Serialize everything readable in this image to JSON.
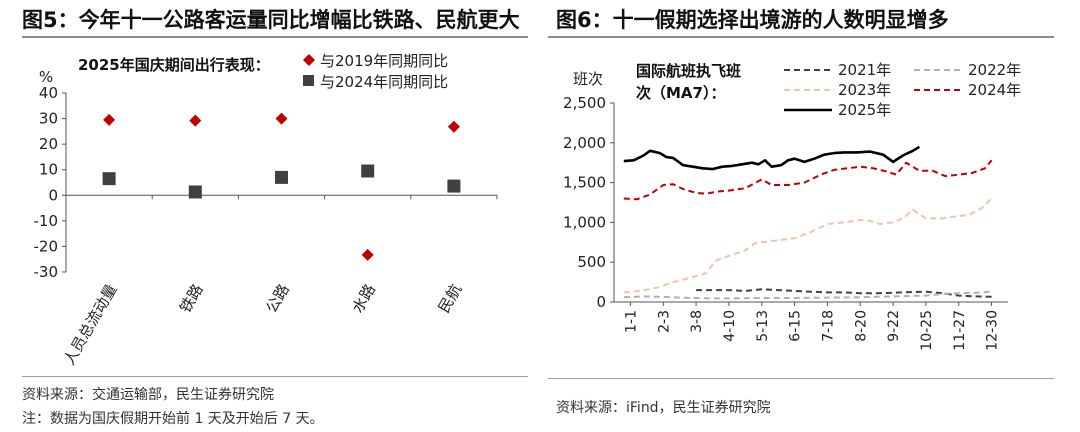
{
  "left": {
    "title": "图5：今年十一公路客运量同比增幅比铁路、民航更大",
    "source": "资料来源：交通运输部，民生证券研究院",
    "note": "注：数据为国庆假期开始前 1 天及开始后 7 天。",
    "chart_data": {
      "type": "scatter",
      "title": "2025年国庆期间出行表现：",
      "ylabel": "%",
      "ylim": [
        -30,
        40
      ],
      "yticks": [
        "40",
        "30",
        "20",
        "10",
        "0",
        "-10",
        "-20",
        "-30"
      ],
      "categories": [
        "人员总流动量",
        "铁路",
        "公路",
        "水路",
        "民航"
      ],
      "series": [
        {
          "name": "与2019年同期同比",
          "marker": "diamond",
          "color": "#c00000",
          "values": [
            29.5,
            29.2,
            30.0,
            -23.3,
            26.8
          ]
        },
        {
          "name": "与2024年同期同比",
          "marker": "square",
          "color": "#404040",
          "values": [
            6.5,
            1.3,
            7.0,
            9.5,
            3.6
          ]
        }
      ]
    }
  },
  "right": {
    "title": "图6：十一假期选择出境游的人数明显增多",
    "source": "资料来源：iFind，民生证券研究院",
    "chart_data": {
      "type": "line",
      "title": "国际航班执飞班次（MA7）：",
      "ylabel": "班次",
      "ylim": [
        0,
        2500
      ],
      "yticks": [
        "2,500",
        "2,000",
        "1,500",
        "1,000",
        "500",
        "0"
      ],
      "x_ticks": [
        "1-1",
        "2-3",
        "3-8",
        "4-10",
        "5-13",
        "6-15",
        "7-18",
        "8-20",
        "9-22",
        "10-25",
        "11-27",
        "12-30"
      ],
      "series": [
        {
          "name": "2021年",
          "color": "#404040",
          "dash": "6,4",
          "points": [
            [
              3.0,
              150
            ],
            [
              4.0,
              150
            ],
            [
              4.5,
              140
            ],
            [
              5.0,
              160
            ],
            [
              5.5,
              150
            ],
            [
              6.0,
              140
            ],
            [
              6.5,
              130
            ],
            [
              7.0,
              120
            ],
            [
              7.5,
              120
            ],
            [
              8.0,
              110
            ],
            [
              8.5,
              110
            ],
            [
              9.0,
              115
            ],
            [
              9.5,
              125
            ],
            [
              10.0,
              130
            ],
            [
              10.5,
              110
            ],
            [
              11.0,
              80
            ],
            [
              11.5,
              70
            ],
            [
              12.0,
              65
            ]
          ]
        },
        {
          "name": "2022年",
          "color": "#b0b0b0",
          "dash": "6,4",
          "points": [
            [
              0.8,
              60
            ],
            [
              1.5,
              70
            ],
            [
              2.0,
              65
            ],
            [
              2.5,
              55
            ],
            [
              3.0,
              50
            ],
            [
              3.5,
              45
            ],
            [
              4.0,
              45
            ],
            [
              5.0,
              50
            ],
            [
              6.0,
              50
            ],
            [
              7.0,
              55
            ],
            [
              8.0,
              60
            ],
            [
              9.0,
              70
            ],
            [
              10.0,
              80
            ],
            [
              10.5,
              100
            ],
            [
              11.0,
              110
            ],
            [
              11.5,
              115
            ],
            [
              12.0,
              130
            ]
          ]
        },
        {
          "name": "2023年",
          "color": "#f4c2a8",
          "dash": "6,4",
          "points": [
            [
              0.8,
              120
            ],
            [
              1.3,
              140
            ],
            [
              1.8,
              180
            ],
            [
              2.3,
              250
            ],
            [
              2.8,
              300
            ],
            [
              3.3,
              360
            ],
            [
              3.6,
              520
            ],
            [
              4.0,
              580
            ],
            [
              4.5,
              650
            ],
            [
              4.8,
              740
            ],
            [
              5.2,
              760
            ],
            [
              5.6,
              780
            ],
            [
              6.0,
              800
            ],
            [
              6.5,
              880
            ],
            [
              7.0,
              980
            ],
            [
              7.5,
              1000
            ],
            [
              8.0,
              1030
            ],
            [
              8.3,
              1020
            ],
            [
              8.6,
              980
            ],
            [
              9.0,
              1000
            ],
            [
              9.3,
              1050
            ],
            [
              9.6,
              1160
            ],
            [
              10.0,
              1050
            ],
            [
              10.5,
              1050
            ],
            [
              11.0,
              1080
            ],
            [
              11.3,
              1090
            ],
            [
              11.7,
              1180
            ],
            [
              12.0,
              1300
            ]
          ]
        },
        {
          "name": "2024年",
          "color": "#c00000",
          "dash": "6,4",
          "points": [
            [
              0.8,
              1300
            ],
            [
              1.2,
              1290
            ],
            [
              1.6,
              1350
            ],
            [
              2.0,
              1470
            ],
            [
              2.3,
              1480
            ],
            [
              2.6,
              1420
            ],
            [
              3.0,
              1370
            ],
            [
              3.3,
              1360
            ],
            [
              3.7,
              1390
            ],
            [
              4.0,
              1400
            ],
            [
              4.5,
              1430
            ],
            [
              5.0,
              1540
            ],
            [
              5.3,
              1470
            ],
            [
              5.8,
              1470
            ],
            [
              6.3,
              1500
            ],
            [
              6.8,
              1600
            ],
            [
              7.2,
              1660
            ],
            [
              7.6,
              1680
            ],
            [
              8.0,
              1700
            ],
            [
              8.4,
              1680
            ],
            [
              8.8,
              1640
            ],
            [
              9.1,
              1600
            ],
            [
              9.4,
              1750
            ],
            [
              9.8,
              1650
            ],
            [
              10.2,
              1650
            ],
            [
              10.6,
              1580
            ],
            [
              11.0,
              1600
            ],
            [
              11.4,
              1620
            ],
            [
              11.8,
              1680
            ],
            [
              12.0,
              1780
            ]
          ]
        },
        {
          "name": "2025年",
          "color": "#000000",
          "dash": "",
          "points": [
            [
              0.8,
              1770
            ],
            [
              1.1,
              1780
            ],
            [
              1.4,
              1840
            ],
            [
              1.6,
              1900
            ],
            [
              1.9,
              1870
            ],
            [
              2.1,
              1820
            ],
            [
              2.3,
              1810
            ],
            [
              2.6,
              1720
            ],
            [
              2.9,
              1700
            ],
            [
              3.2,
              1680
            ],
            [
              3.5,
              1670
            ],
            [
              3.8,
              1700
            ],
            [
              4.1,
              1710
            ],
            [
              4.4,
              1730
            ],
            [
              4.7,
              1750
            ],
            [
              4.9,
              1730
            ],
            [
              5.1,
              1780
            ],
            [
              5.3,
              1700
            ],
            [
              5.6,
              1720
            ],
            [
              5.8,
              1780
            ],
            [
              6.0,
              1800
            ],
            [
              6.3,
              1760
            ],
            [
              6.6,
              1800
            ],
            [
              6.9,
              1850
            ],
            [
              7.2,
              1870
            ],
            [
              7.5,
              1880
            ],
            [
              7.9,
              1880
            ],
            [
              8.3,
              1890
            ],
            [
              8.7,
              1850
            ],
            [
              9.0,
              1760
            ],
            [
              9.3,
              1840
            ],
            [
              9.6,
              1900
            ],
            [
              9.8,
              1950
            ]
          ]
        }
      ]
    }
  }
}
